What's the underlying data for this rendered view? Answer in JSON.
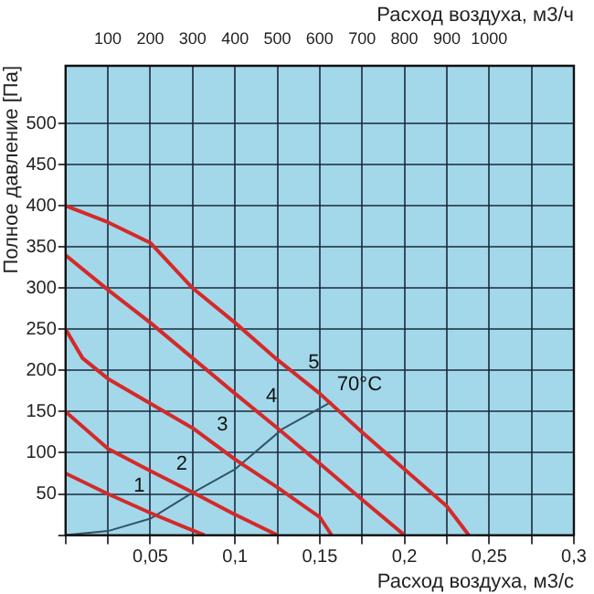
{
  "chart_data": {
    "type": "line",
    "xlabel": "Расход воздуха, м3/с",
    "ylabel": "Полное давление [Па]",
    "x2label": "Расход воздуха, м3/ч",
    "xlim": [
      0,
      0.3
    ],
    "xticks": [
      {
        "value": 0,
        "label": null
      },
      {
        "value": 0.025,
        "label": null
      },
      {
        "value": 0.05,
        "label": "0,05"
      },
      {
        "value": 0.075,
        "label": null
      },
      {
        "value": 0.1,
        "label": "0,1"
      },
      {
        "value": 0.125,
        "label": null
      },
      {
        "value": 0.15,
        "label": "0,15"
      },
      {
        "value": 0.175,
        "label": null
      },
      {
        "value": 0.2,
        "label": "0,2"
      },
      {
        "value": 0.225,
        "label": null
      },
      {
        "value": 0.25,
        "label": "0,25"
      },
      {
        "value": 0.275,
        "label": null
      },
      {
        "value": 0.3,
        "label": "0,3"
      }
    ],
    "x2lim": [
      0,
      1200
    ],
    "x2ticks": [
      100,
      200,
      300,
      400,
      500,
      600,
      700,
      800,
      900,
      1000
    ],
    "ylim": [
      0,
      570
    ],
    "yticks": [
      {
        "value": 0,
        "label": null
      },
      50,
      100,
      150,
      200,
      250,
      300,
      350,
      400,
      450,
      500
    ],
    "grid": true,
    "legend": false,
    "marker": "none",
    "line_style": "solid",
    "series": [
      {
        "color": "#d42a2a",
        "x": [
          0,
          0.025,
          0.05,
          0.07,
          0.082
        ],
        "values": [
          75,
          50,
          27,
          10,
          0
        ]
      },
      {
        "color": "#d42a2a",
        "x": [
          0,
          0.025,
          0.05,
          0.075,
          0.1,
          0.125
        ],
        "values": [
          150,
          105,
          78,
          52,
          25,
          0
        ]
      },
      {
        "color": "#d42a2a",
        "x": [
          0,
          0.01,
          0.025,
          0.05,
          0.075,
          0.1,
          0.125,
          0.15,
          0.157
        ],
        "values": [
          250,
          215,
          190,
          160,
          130,
          92,
          58,
          22,
          0
        ]
      },
      {
        "color": "#d42a2a",
        "x": [
          0,
          0.025,
          0.05,
          0.075,
          0.1,
          0.125,
          0.15,
          0.175,
          0.2
        ],
        "values": [
          340,
          298,
          258,
          215,
          172,
          130,
          87,
          43,
          0
        ]
      },
      {
        "color": "#d42a2a",
        "x": [
          0,
          0.025,
          0.05,
          0.075,
          0.1,
          0.125,
          0.15,
          0.175,
          0.2,
          0.225,
          0.238
        ],
        "values": [
          400,
          380,
          355,
          300,
          258,
          213,
          172,
          125,
          80,
          35,
          0
        ]
      },
      {
        "color": "#2f5566",
        "x": [
          0,
          0.025,
          0.05,
          0.073,
          0.1,
          0.128,
          0.157
        ],
        "values": [
          0,
          5,
          20,
          49,
          80,
          129,
          162
        ]
      }
    ],
    "annotations": [
      {
        "text": "1",
        "x": 0.037,
        "y": 39
      },
      {
        "text": "2",
        "x": 0.062,
        "y": 65
      },
      {
        "text": "3",
        "x": 0.086,
        "y": 113
      },
      {
        "text": "4",
        "x": 0.115,
        "y": 147
      },
      {
        "text": "5",
        "x": 0.14,
        "y": 188
      },
      {
        "text": "70°C",
        "x": 0.157,
        "y": 162
      }
    ]
  }
}
